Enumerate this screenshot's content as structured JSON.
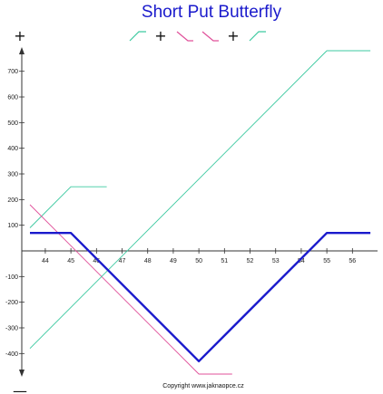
{
  "chart_data": {
    "type": "line",
    "title": "Short Put Butterfly",
    "xlabel": "",
    "ylabel": "",
    "xlim": [
      43.2,
      56.8
    ],
    "ylim": [
      -520,
      780
    ],
    "grid": false,
    "x_ticks": [
      "44",
      "45",
      "46",
      "47",
      "48",
      "49",
      "50",
      "51",
      "52",
      "53",
      "54",
      "55",
      "56"
    ],
    "y_ticks": [
      "700",
      "600",
      "500",
      "400",
      "300",
      "200",
      "100",
      "-100",
      "-200",
      "-300",
      "-400"
    ],
    "axis_signs": {
      "top": "+",
      "bottom": "—"
    },
    "legend": {
      "placement": "top",
      "items": [
        {
          "shape": "rising-flat",
          "color": "#3cc9a0"
        },
        {
          "operator": "+"
        },
        {
          "shape": "falling",
          "color": "#e0509a"
        },
        {
          "shape": "falling",
          "color": "#e0509a"
        },
        {
          "operator": "+"
        },
        {
          "shape": "rising-flat",
          "color": "#3cc9a0"
        }
      ]
    },
    "series": [
      {
        "role": "combined",
        "color": "#1a1acc",
        "x": [
          43.4,
          45,
          50,
          55,
          56.7
        ],
        "y": [
          70,
          70,
          -430,
          70,
          70
        ]
      },
      {
        "role": "leg-1",
        "color": "#3cc9a0",
        "x": [
          43.4,
          45,
          46.4
        ],
        "y": [
          90,
          250,
          250
        ]
      },
      {
        "role": "leg-2",
        "color": "#e0509a",
        "x": [
          43.4,
          50,
          51.3
        ],
        "y": [
          180,
          -480,
          -480
        ]
      },
      {
        "role": "leg-3",
        "color": "#3cc9a0",
        "x": [
          43.4,
          55,
          56.7
        ],
        "y": [
          -380,
          780,
          780
        ]
      }
    ],
    "copyright": "Copyright www.jaknaopce.cz"
  }
}
